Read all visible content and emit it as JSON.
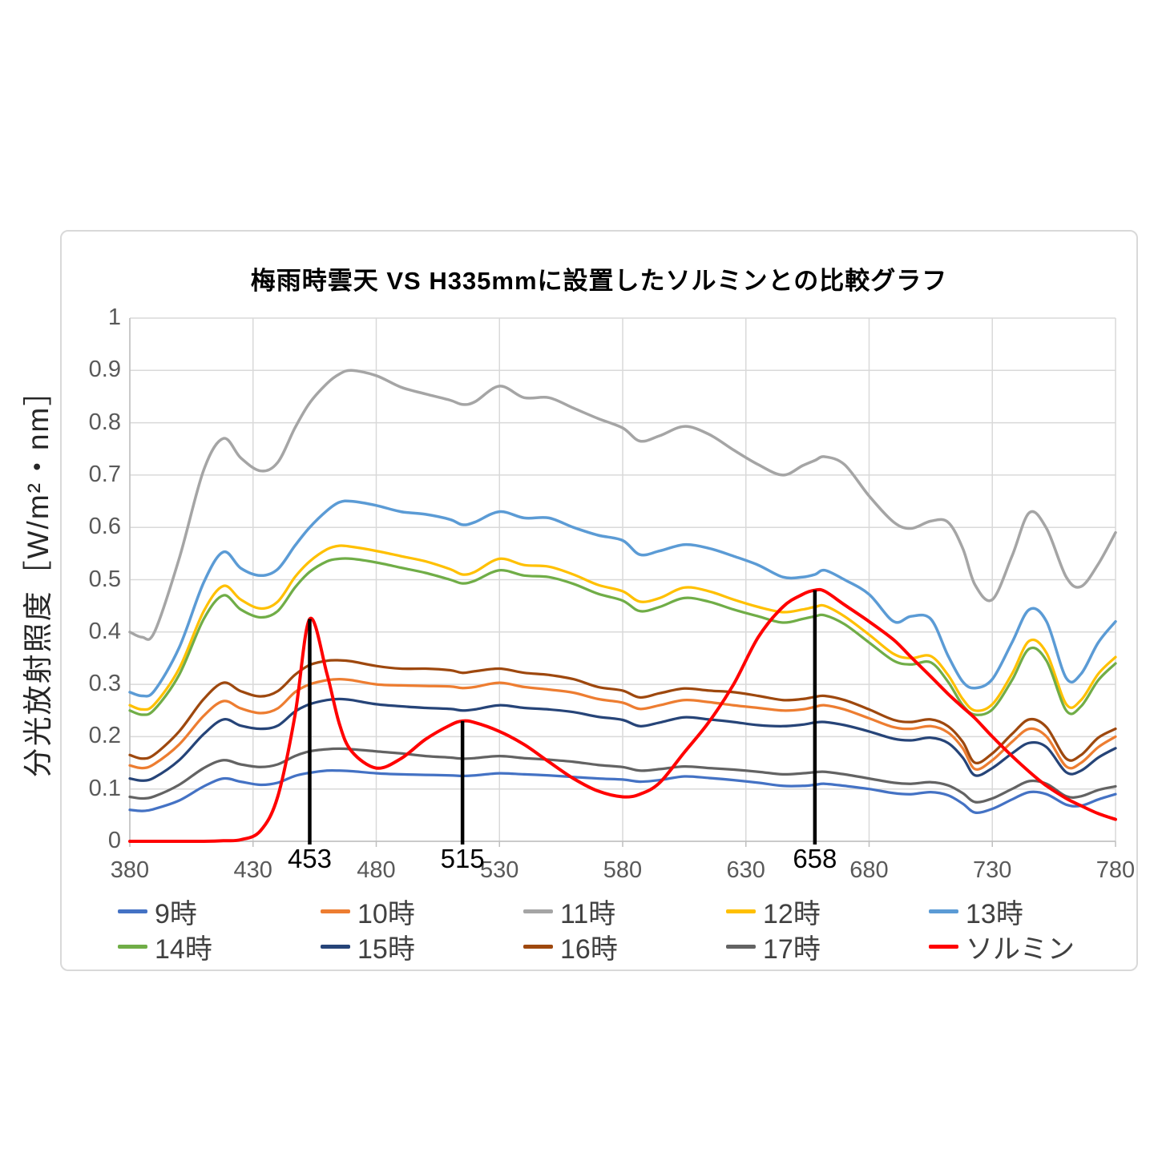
{
  "styles": {
    "grid_color": "#D9D9D9",
    "axis_color": "#BFBFBF",
    "tick_text_color": "#595959",
    "legend_text_color": "#404040",
    "title_color": "#000000",
    "annotation_color": "#000000",
    "frame_border_color": "#D9D9D9",
    "background": "#FFFFFF"
  },
  "chart_data": {
    "type": "line",
    "title": "梅雨時雲天 VS H335mmに設置したソルミンとの比較グラフ",
    "ylabel": "分光放射照度［W/m²・nm］",
    "xlabel": "",
    "xlim": [
      380,
      780
    ],
    "ylim": [
      0,
      1
    ],
    "x_ticks": [
      380,
      430,
      480,
      530,
      580,
      630,
      680,
      730,
      780
    ],
    "y_ticks": [
      0,
      0.1,
      0.2,
      0.3,
      0.4,
      0.5,
      0.6,
      0.7,
      0.8,
      0.9,
      1
    ],
    "grid": true,
    "legend_position": "bottom",
    "x": [
      380,
      385,
      390,
      400,
      410,
      418,
      425,
      433,
      440,
      447,
      453,
      460,
      465,
      470,
      480,
      490,
      500,
      510,
      515,
      520,
      530,
      540,
      550,
      560,
      570,
      580,
      587,
      595,
      605,
      615,
      625,
      635,
      645,
      653,
      658,
      662,
      670,
      680,
      690,
      697,
      705,
      712,
      718,
      723,
      730,
      738,
      745,
      752,
      760,
      766,
      773,
      780
    ],
    "series": [
      {
        "name": "9時",
        "color": "#4472C4",
        "width": 3.25,
        "values": [
          0.06,
          0.058,
          0.062,
          0.078,
          0.105,
          0.12,
          0.114,
          0.108,
          0.112,
          0.125,
          0.131,
          0.135,
          0.135,
          0.134,
          0.13,
          0.128,
          0.127,
          0.126,
          0.125,
          0.126,
          0.13,
          0.128,
          0.126,
          0.123,
          0.12,
          0.118,
          0.114,
          0.117,
          0.124,
          0.121,
          0.117,
          0.112,
          0.106,
          0.106,
          0.108,
          0.11,
          0.106,
          0.1,
          0.092,
          0.09,
          0.094,
          0.088,
          0.072,
          0.055,
          0.062,
          0.08,
          0.094,
          0.09,
          0.07,
          0.068,
          0.08,
          0.09
        ]
      },
      {
        "name": "10時",
        "color": "#ED7D31",
        "width": 3.25,
        "values": [
          0.145,
          0.14,
          0.148,
          0.185,
          0.24,
          0.268,
          0.254,
          0.245,
          0.254,
          0.285,
          0.3,
          0.308,
          0.31,
          0.308,
          0.3,
          0.298,
          0.297,
          0.296,
          0.293,
          0.295,
          0.303,
          0.295,
          0.29,
          0.284,
          0.272,
          0.265,
          0.253,
          0.26,
          0.27,
          0.266,
          0.26,
          0.255,
          0.25,
          0.252,
          0.257,
          0.26,
          0.252,
          0.235,
          0.218,
          0.215,
          0.22,
          0.208,
          0.178,
          0.138,
          0.155,
          0.19,
          0.215,
          0.2,
          0.143,
          0.15,
          0.18,
          0.2
        ]
      },
      {
        "name": "11時",
        "color": "#A5A5A5",
        "width": 3.5,
        "values": [
          0.4,
          0.39,
          0.4,
          0.54,
          0.71,
          0.77,
          0.733,
          0.708,
          0.724,
          0.79,
          0.838,
          0.875,
          0.893,
          0.9,
          0.89,
          0.868,
          0.855,
          0.843,
          0.835,
          0.84,
          0.87,
          0.848,
          0.848,
          0.828,
          0.808,
          0.79,
          0.765,
          0.775,
          0.793,
          0.778,
          0.748,
          0.72,
          0.7,
          0.718,
          0.728,
          0.735,
          0.72,
          0.66,
          0.61,
          0.598,
          0.612,
          0.61,
          0.56,
          0.49,
          0.462,
          0.545,
          0.628,
          0.598,
          0.505,
          0.487,
          0.53,
          0.59
        ]
      },
      {
        "name": "12時",
        "color": "#FFC000",
        "width": 3.25,
        "values": [
          0.26,
          0.252,
          0.262,
          0.33,
          0.44,
          0.488,
          0.462,
          0.445,
          0.458,
          0.505,
          0.535,
          0.558,
          0.565,
          0.563,
          0.555,
          0.545,
          0.535,
          0.52,
          0.51,
          0.515,
          0.54,
          0.528,
          0.525,
          0.51,
          0.49,
          0.478,
          0.458,
          0.465,
          0.485,
          0.478,
          0.462,
          0.448,
          0.438,
          0.443,
          0.448,
          0.45,
          0.43,
          0.395,
          0.358,
          0.35,
          0.354,
          0.318,
          0.272,
          0.25,
          0.262,
          0.32,
          0.383,
          0.36,
          0.262,
          0.27,
          0.32,
          0.352
        ]
      },
      {
        "name": "13時",
        "color": "#5B9BD5",
        "width": 3.5,
        "values": [
          0.285,
          0.278,
          0.288,
          0.37,
          0.495,
          0.553,
          0.522,
          0.508,
          0.52,
          0.565,
          0.6,
          0.632,
          0.648,
          0.65,
          0.642,
          0.63,
          0.625,
          0.615,
          0.605,
          0.61,
          0.63,
          0.618,
          0.618,
          0.6,
          0.585,
          0.575,
          0.548,
          0.555,
          0.567,
          0.56,
          0.545,
          0.528,
          0.505,
          0.505,
          0.51,
          0.518,
          0.5,
          0.472,
          0.42,
          0.43,
          0.425,
          0.355,
          0.305,
          0.293,
          0.31,
          0.38,
          0.443,
          0.42,
          0.312,
          0.32,
          0.38,
          0.42
        ]
      },
      {
        "name": "14時",
        "color": "#70AD47",
        "width": 3.25,
        "values": [
          0.25,
          0.242,
          0.252,
          0.318,
          0.425,
          0.47,
          0.443,
          0.428,
          0.44,
          0.485,
          0.515,
          0.535,
          0.54,
          0.54,
          0.533,
          0.523,
          0.513,
          0.5,
          0.493,
          0.498,
          0.518,
          0.508,
          0.505,
          0.492,
          0.473,
          0.46,
          0.44,
          0.448,
          0.465,
          0.458,
          0.443,
          0.43,
          0.418,
          0.425,
          0.43,
          0.432,
          0.415,
          0.38,
          0.345,
          0.338,
          0.342,
          0.305,
          0.26,
          0.242,
          0.252,
          0.308,
          0.368,
          0.345,
          0.25,
          0.258,
          0.308,
          0.34
        ]
      },
      {
        "name": "15時",
        "color": "#264478",
        "width": 3.25,
        "values": [
          0.12,
          0.116,
          0.122,
          0.155,
          0.205,
          0.233,
          0.221,
          0.215,
          0.221,
          0.248,
          0.262,
          0.27,
          0.272,
          0.27,
          0.262,
          0.258,
          0.255,
          0.253,
          0.25,
          0.252,
          0.26,
          0.255,
          0.252,
          0.247,
          0.238,
          0.232,
          0.22,
          0.227,
          0.237,
          0.233,
          0.228,
          0.222,
          0.22,
          0.223,
          0.227,
          0.228,
          0.222,
          0.21,
          0.196,
          0.193,
          0.198,
          0.188,
          0.16,
          0.126,
          0.14,
          0.168,
          0.188,
          0.18,
          0.132,
          0.135,
          0.16,
          0.178
        ]
      },
      {
        "name": "16時",
        "color": "#9E480E",
        "width": 3.25,
        "values": [
          0.165,
          0.158,
          0.166,
          0.21,
          0.272,
          0.303,
          0.287,
          0.277,
          0.287,
          0.318,
          0.337,
          0.345,
          0.346,
          0.344,
          0.335,
          0.33,
          0.33,
          0.327,
          0.322,
          0.325,
          0.33,
          0.322,
          0.318,
          0.31,
          0.295,
          0.288,
          0.275,
          0.283,
          0.292,
          0.288,
          0.285,
          0.278,
          0.27,
          0.272,
          0.276,
          0.278,
          0.27,
          0.252,
          0.232,
          0.228,
          0.233,
          0.22,
          0.19,
          0.15,
          0.168,
          0.205,
          0.233,
          0.218,
          0.158,
          0.165,
          0.198,
          0.215
        ]
      },
      {
        "name": "17時",
        "color": "#636363",
        "width": 3.25,
        "values": [
          0.085,
          0.082,
          0.086,
          0.108,
          0.14,
          0.155,
          0.147,
          0.142,
          0.147,
          0.163,
          0.172,
          0.176,
          0.177,
          0.176,
          0.172,
          0.168,
          0.163,
          0.16,
          0.158,
          0.159,
          0.163,
          0.159,
          0.156,
          0.152,
          0.146,
          0.142,
          0.135,
          0.138,
          0.143,
          0.14,
          0.137,
          0.133,
          0.128,
          0.13,
          0.132,
          0.133,
          0.128,
          0.12,
          0.112,
          0.11,
          0.113,
          0.107,
          0.092,
          0.075,
          0.082,
          0.1,
          0.115,
          0.11,
          0.086,
          0.086,
          0.098,
          0.105
        ]
      },
      {
        "name": "ソルミン",
        "color": "#FF0000",
        "width": 4,
        "values": [
          0,
          0,
          0,
          0,
          0,
          0.001,
          0.003,
          0.02,
          0.085,
          0.24,
          0.425,
          0.32,
          0.225,
          0.172,
          0.14,
          0.158,
          0.195,
          0.222,
          0.23,
          0.227,
          0.21,
          0.185,
          0.152,
          0.12,
          0.096,
          0.085,
          0.09,
          0.112,
          0.17,
          0.228,
          0.3,
          0.39,
          0.448,
          0.472,
          0.48,
          0.478,
          0.452,
          0.42,
          0.385,
          0.352,
          0.315,
          0.282,
          0.256,
          0.235,
          0.2,
          0.163,
          0.133,
          0.106,
          0.082,
          0.068,
          0.053,
          0.042
        ]
      }
    ],
    "annotations": [
      {
        "x": 453,
        "label": "453",
        "y_top": 0.425
      },
      {
        "x": 515,
        "label": "515",
        "y_top": 0.23
      },
      {
        "x": 658,
        "label": "658",
        "y_top": 0.48
      }
    ]
  }
}
